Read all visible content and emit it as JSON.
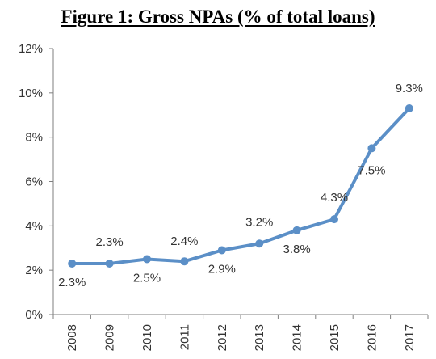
{
  "chart_data": {
    "type": "line",
    "title": "Figure 1: Gross NPAs (% of total loans)",
    "xlabel": "",
    "ylabel": "",
    "categories": [
      "2008",
      "2009",
      "2010",
      "2011",
      "2012",
      "2013",
      "2014",
      "2015",
      "2016",
      "2017"
    ],
    "series": [
      {
        "values": [
          2.3,
          2.3,
          2.5,
          2.4,
          2.9,
          3.2,
          3.8,
          4.3,
          7.5,
          9.3
        ],
        "data_labels": [
          "2.3%",
          "2.3%",
          "2.5%",
          "2.4%",
          "2.9%",
          "3.2%",
          "3.8%",
          "4.3%",
          "7.5%",
          "9.3%"
        ],
        "color": "#5B8FC7"
      }
    ],
    "ylim": [
      0,
      12
    ],
    "yticks": [
      0,
      2,
      4,
      6,
      8,
      10,
      12
    ],
    "ytick_labels": [
      "0%",
      "2%",
      "4%",
      "6%",
      "8%",
      "10%",
      "12%"
    ],
    "grid": false,
    "legend": "none"
  }
}
